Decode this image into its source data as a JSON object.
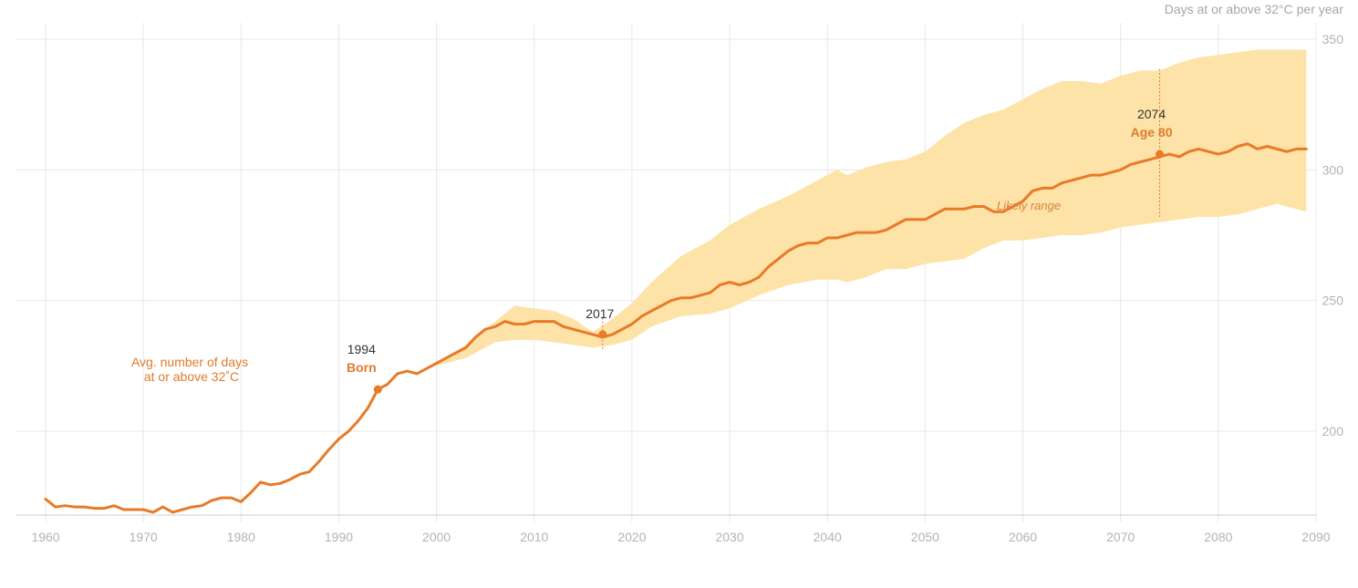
{
  "chart_data": {
    "type": "line",
    "ylabel": "Days at or above 32°C per year",
    "xlim": [
      1960,
      2090
    ],
    "ylim": [
      165,
      350
    ],
    "x_ticks": [
      "1960",
      "1970",
      "1980",
      "1990",
      "2000",
      "2010",
      "2020",
      "2030",
      "2040",
      "2050",
      "2060",
      "2070",
      "2080",
      "2090"
    ],
    "y_ticks": [
      "200",
      "250",
      "300",
      "350"
    ],
    "grid": true,
    "colors": {
      "line": "#e87a28",
      "band": "#fde3a7",
      "grid": "#e8e8e8"
    },
    "series_label": [
      "Avg. number of days",
      "at or above 32˚C"
    ],
    "band_label": "Likely range",
    "series": {
      "x": [
        1960,
        1961,
        1962,
        1963,
        1964,
        1965,
        1966,
        1967,
        1968,
        1969,
        1970,
        1971,
        1972,
        1973,
        1974,
        1975,
        1976,
        1977,
        1978,
        1979,
        1980,
        1981,
        1982,
        1983,
        1984,
        1985,
        1986,
        1987,
        1988,
        1989,
        1990,
        1991,
        1992,
        1993,
        1994,
        1995,
        1996,
        1997,
        1998,
        1999,
        2000,
        2001,
        2002,
        2003,
        2004,
        2005,
        2006,
        2007,
        2008,
        2009,
        2010,
        2011,
        2012,
        2013,
        2014,
        2015,
        2016,
        2017,
        2018,
        2019,
        2020,
        2021,
        2022,
        2023,
        2024,
        2025,
        2026,
        2027,
        2028,
        2029,
        2030,
        2031,
        2032,
        2033,
        2034,
        2035,
        2036,
        2037,
        2038,
        2039,
        2040,
        2041,
        2042,
        2043,
        2044,
        2045,
        2046,
        2047,
        2048,
        2049,
        2050,
        2051,
        2052,
        2053,
        2054,
        2055,
        2056,
        2057,
        2058,
        2059,
        2060,
        2061,
        2062,
        2063,
        2064,
        2065,
        2066,
        2067,
        2068,
        2069,
        2070,
        2071,
        2072,
        2073,
        2074,
        2075,
        2076,
        2077,
        2078,
        2079,
        2080,
        2081,
        2082,
        2083,
        2084,
        2085,
        2086,
        2087,
        2088,
        2089
      ],
      "values": [
        174,
        171,
        171.5,
        171,
        171,
        170.5,
        170.5,
        171.5,
        170,
        170,
        170,
        169,
        171,
        169,
        170,
        171,
        171.5,
        173.5,
        174.5,
        174.5,
        173,
        176.5,
        180.5,
        179.5,
        180,
        181.5,
        183.5,
        184.5,
        188.5,
        193,
        197,
        200,
        204,
        209,
        216,
        218,
        222,
        223,
        222,
        224,
        226,
        228,
        230,
        232,
        236,
        239,
        240,
        242,
        241,
        241,
        242,
        242,
        242,
        240,
        239,
        238,
        237,
        236,
        237,
        239,
        241,
        244,
        246,
        248,
        250,
        251,
        251,
        252,
        253,
        256,
        257,
        256,
        257,
        259,
        263,
        266,
        269,
        271,
        272,
        272,
        274,
        274,
        275,
        276,
        276,
        276,
        277,
        279,
        281,
        281,
        281,
        283,
        285,
        285,
        285,
        286,
        286,
        284,
        284,
        286,
        288,
        292,
        293,
        293,
        295,
        296,
        297,
        298,
        298,
        299,
        300,
        302,
        303,
        304,
        305,
        306,
        305,
        307,
        308,
        307,
        306,
        307,
        309,
        310,
        308,
        309,
        308,
        307,
        308,
        308
      ]
    },
    "band": {
      "x": [
        2000,
        2003,
        2006,
        2008,
        2010,
        2012,
        2014,
        2016,
        2018,
        2020,
        2022,
        2025,
        2028,
        2030,
        2033,
        2036,
        2039,
        2041,
        2042,
        2044,
        2046,
        2048,
        2050,
        2052,
        2054,
        2056,
        2058,
        2060,
        2062,
        2064,
        2066,
        2068,
        2070,
        2072,
        2074,
        2076,
        2078,
        2080,
        2082,
        2084,
        2086,
        2089
      ],
      "upper": [
        226,
        233,
        242,
        248,
        247,
        246,
        243,
        238,
        243,
        249,
        257,
        267,
        273,
        279,
        285,
        290,
        296,
        300,
        298,
        301,
        303,
        304,
        307,
        313,
        318,
        321,
        323,
        327,
        331,
        334,
        334,
        333,
        336,
        338,
        338,
        341,
        343,
        344,
        345,
        346,
        346,
        346
      ],
      "lower": [
        225,
        228,
        234,
        235,
        235,
        234,
        233,
        232,
        233,
        235,
        240,
        244,
        245,
        247,
        252,
        256,
        258,
        258,
        257,
        259,
        262,
        262,
        264,
        265,
        266,
        270,
        273,
        273,
        274,
        275,
        275,
        276,
        278,
        279,
        280,
        281,
        282,
        282,
        283,
        285,
        287,
        284
      ]
    },
    "annotations": [
      {
        "x": 1994,
        "y": 216,
        "year": "1994",
        "label": "Born"
      },
      {
        "x": 2017,
        "y": 237,
        "year": "2017",
        "label": ""
      },
      {
        "x": 2074,
        "y": 306,
        "year": "2074",
        "label": "Age 80"
      }
    ]
  }
}
